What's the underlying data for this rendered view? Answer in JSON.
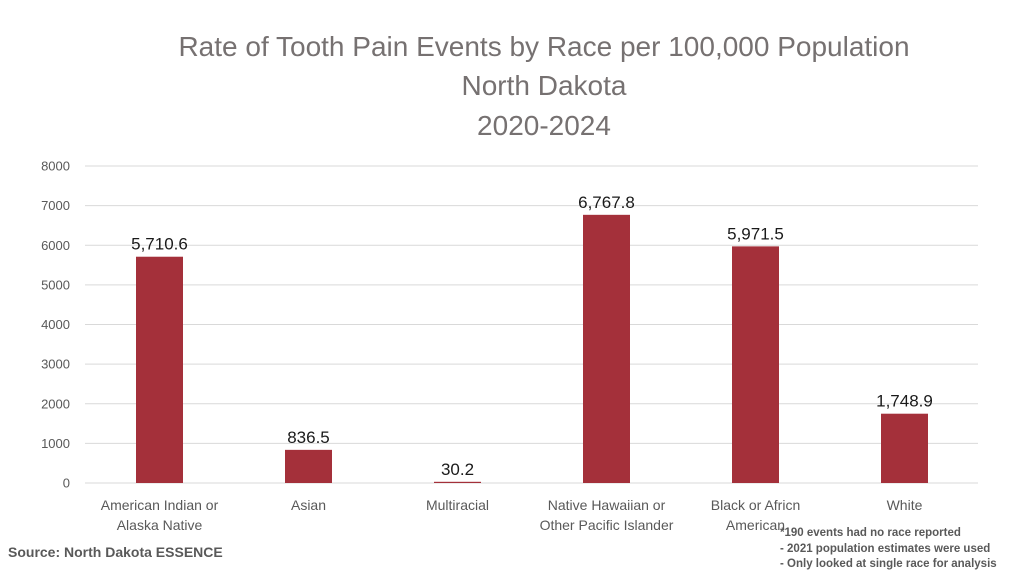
{
  "chart_data": {
    "type": "bar",
    "title": [
      "Rate of Tooth Pain Events by Race per 100,000 Population",
      "North Dakota",
      "2020-2024"
    ],
    "categories": [
      [
        "American Indian or",
        "Alaska Native"
      ],
      [
        "Asian"
      ],
      [
        "Multiracial"
      ],
      [
        "Native Hawaiian or",
        "Other Pacific Islander"
      ],
      [
        "Black or Africn",
        "American"
      ],
      [
        "White"
      ]
    ],
    "values": [
      5710.6,
      836.5,
      30.2,
      6767.8,
      5971.5,
      1748.9
    ],
    "data_labels": [
      "5,710.6",
      "836.5",
      "30.2",
      "6,767.8",
      "5,971.5",
      "1,748.9"
    ],
    "yticks": [
      "0",
      "1000",
      "2000",
      "3000",
      "4000",
      "5000",
      "6000",
      "7000",
      "8000"
    ],
    "ylim": [
      0,
      8000
    ],
    "grid": true,
    "xlabel": "",
    "ylabel": "",
    "colors": {
      "bar": "#a4303a",
      "grid": "#d9d9d9",
      "axis_text": "#595959",
      "title": "#767171"
    }
  },
  "footer": {
    "source": "Source: North Dakota ESSENCE",
    "notes": [
      "*190 events had no race reported",
      "- 2021 population estimates were used",
      "- Only looked at single race for analysis"
    ]
  }
}
